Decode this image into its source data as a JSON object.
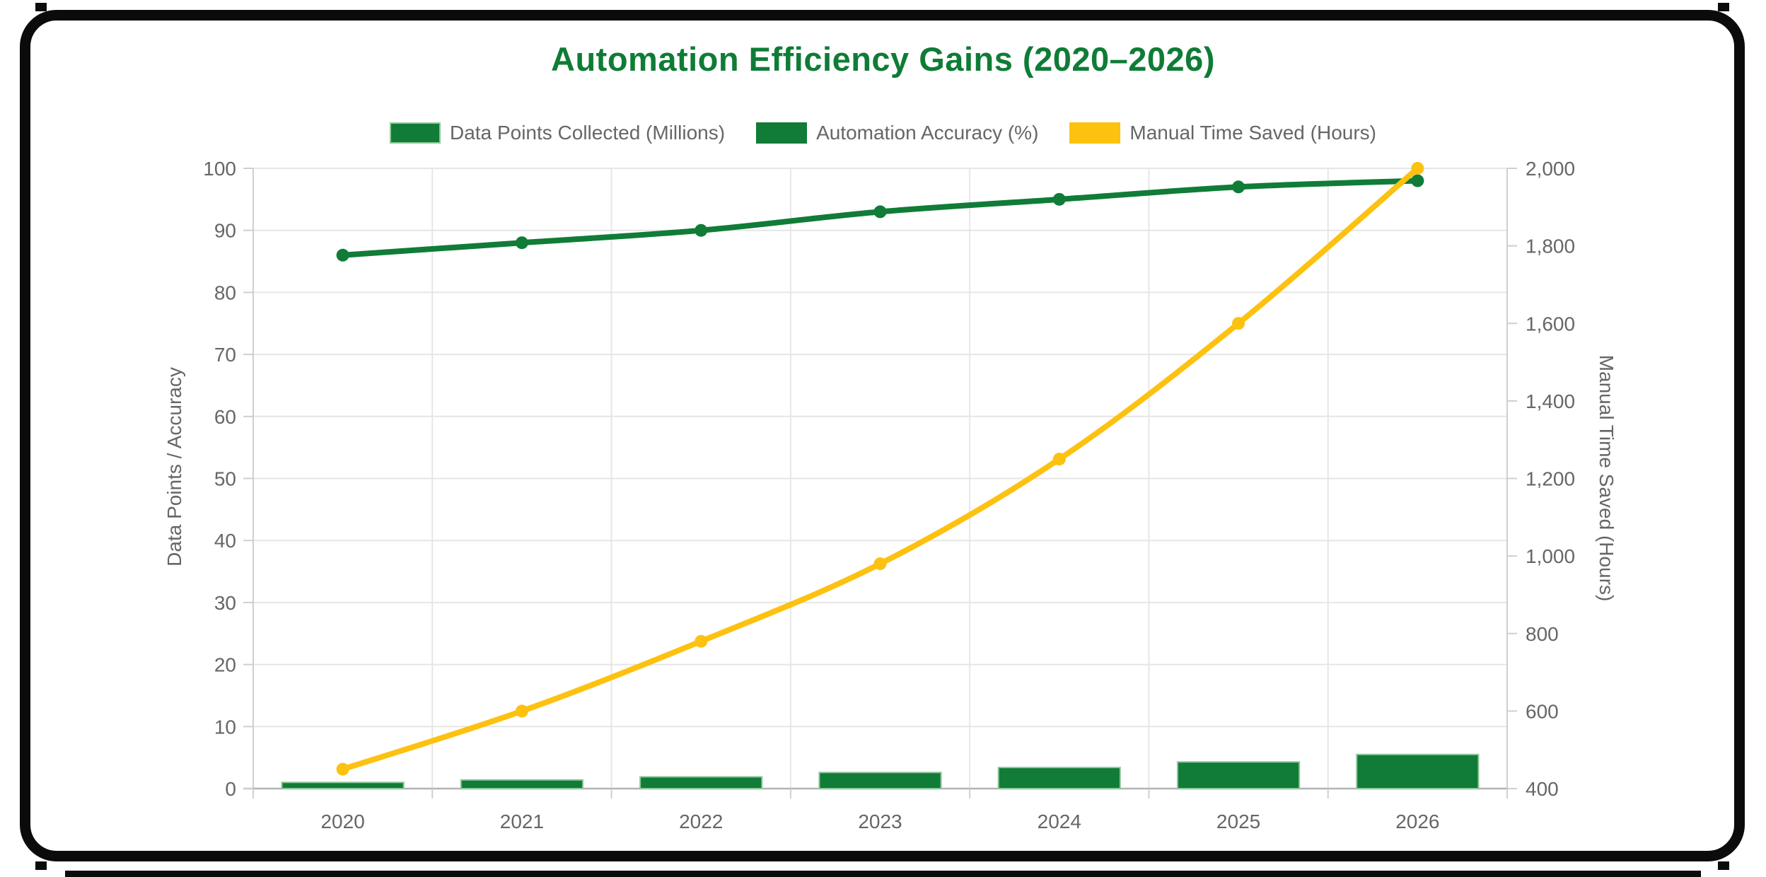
{
  "title": "Automation Efficiency Gains (2020–2026)",
  "colors": {
    "green": "#107c37",
    "green_border": "#8fc79b",
    "yellow": "#fdc110",
    "title_green": "#0f7c36",
    "text_gray": "#666666",
    "grid": "#e6e6e6",
    "axis_line": "#cfcfcf",
    "baseline": "#b3b3b3",
    "frame_black": "#0b0b0b"
  },
  "chart_data": {
    "type": "combo",
    "title": "Automation Efficiency Gains (2020–2026)",
    "categories": [
      "2020",
      "2021",
      "2022",
      "2023",
      "2024",
      "2025",
      "2026"
    ],
    "series": [
      {
        "name": "Data Points Collected (Millions)",
        "type": "bar",
        "axis": "left",
        "color": "#107c37",
        "border": "#8fc79b",
        "values": [
          1,
          1.4,
          1.9,
          2.6,
          3.4,
          4.3,
          5.5
        ]
      },
      {
        "name": "Automation Accuracy (%)",
        "type": "line",
        "axis": "left",
        "color": "#107c37",
        "values": [
          86,
          88,
          90,
          93,
          95,
          97,
          98
        ]
      },
      {
        "name": "Manual Time Saved (Hours)",
        "type": "line",
        "axis": "right",
        "color": "#fdc110",
        "values": [
          450,
          600,
          780,
          980,
          1250,
          1600,
          2000
        ]
      }
    ],
    "left_axis": {
      "label": "Data Points / Accuracy",
      "min": 0,
      "max": 100,
      "ticks": [
        "0",
        "10",
        "20",
        "30",
        "40",
        "50",
        "60",
        "70",
        "80",
        "90",
        "100"
      ]
    },
    "right_axis": {
      "label": "Manual Time Saved (Hours)",
      "min": 400,
      "max": 2000,
      "ticks": [
        "400",
        "600",
        "800",
        "1,000",
        "1,200",
        "1,400",
        "1,600",
        "1,800",
        "2,000"
      ]
    },
    "grid": true,
    "legend_position": "top"
  }
}
